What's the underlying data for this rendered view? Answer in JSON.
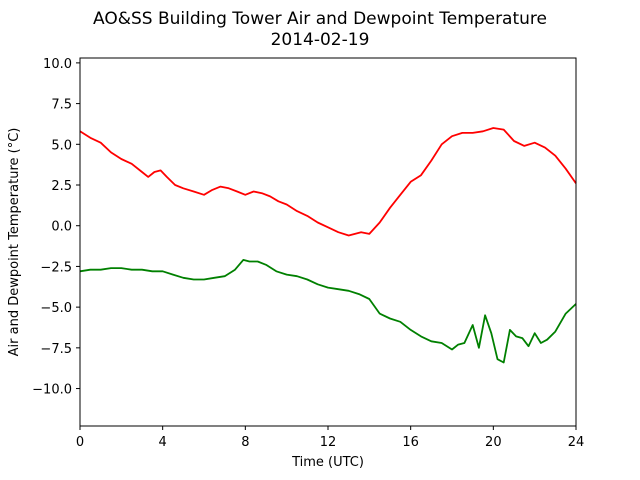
{
  "chart_data": {
    "type": "line",
    "title": "AO&SS Building Tower Air and Dewpoint Temperature",
    "subtitle": "2014-02-19",
    "xlabel": "Time (UTC)",
    "ylabel": "Air and Dewpoint Temperature (°C)",
    "xlim": [
      0,
      24
    ],
    "ylim": [
      -12.3,
      10.3
    ],
    "xticks": [
      0,
      4,
      8,
      12,
      16,
      20,
      24
    ],
    "xtick_labels": [
      "0",
      "4",
      "8",
      "12",
      "16",
      "20",
      "24"
    ],
    "yticks": [
      10.0,
      7.5,
      5.0,
      2.5,
      0.0,
      -2.5,
      -5.0,
      -7.5,
      -10.0
    ],
    "ytick_labels": [
      "10.0",
      "7.5",
      "5.0",
      "2.5",
      "0.0",
      "−2.5",
      "−5.0",
      "−7.5",
      "−10.0"
    ],
    "grid": false,
    "legend": "none",
    "series": [
      {
        "color": "#ff0000",
        "x": [
          0,
          0.5,
          1,
          1.5,
          2,
          2.5,
          3,
          3.3,
          3.6,
          3.9,
          4.2,
          4.6,
          5,
          5.5,
          6,
          6.4,
          6.8,
          7.2,
          7.6,
          8,
          8.4,
          8.8,
          9.2,
          9.6,
          10,
          10.5,
          11,
          11.5,
          12,
          12.5,
          13,
          13.3,
          13.6,
          14,
          14.5,
          15,
          15.5,
          16,
          16.5,
          17,
          17.5,
          18,
          18.5,
          19,
          19.5,
          20,
          20.5,
          21,
          21.5,
          22,
          22.5,
          23,
          23.5,
          24
        ],
        "y": [
          5.8,
          5.4,
          5.1,
          4.5,
          4.1,
          3.8,
          3.3,
          3.0,
          3.3,
          3.4,
          3.0,
          2.5,
          2.3,
          2.1,
          1.9,
          2.2,
          2.4,
          2.3,
          2.1,
          1.9,
          2.1,
          2.0,
          1.8,
          1.5,
          1.3,
          0.9,
          0.6,
          0.2,
          -0.1,
          -0.4,
          -0.6,
          -0.5,
          -0.4,
          -0.5,
          0.2,
          1.1,
          1.9,
          2.7,
          3.1,
          4.0,
          5.0,
          5.5,
          5.7,
          5.7,
          5.8,
          6.0,
          5.9,
          5.2,
          4.9,
          5.1,
          4.8,
          4.3,
          3.5,
          2.6
        ]
      },
      {
        "color": "#008000",
        "x": [
          0,
          0.5,
          1,
          1.5,
          2,
          2.5,
          3,
          3.5,
          4,
          4.5,
          5,
          5.5,
          6,
          6.5,
          7,
          7.5,
          7.9,
          8.2,
          8.6,
          9,
          9.5,
          10,
          10.5,
          11,
          11.5,
          12,
          12.5,
          13,
          13.5,
          14,
          14.5,
          15,
          15.5,
          16,
          16.5,
          17,
          17.5,
          18,
          18.3,
          18.6,
          19,
          19.3,
          19.6,
          19.9,
          20.2,
          20.5,
          20.8,
          21.1,
          21.4,
          21.7,
          22,
          22.3,
          22.6,
          23,
          23.5,
          24
        ],
        "y": [
          -2.8,
          -2.7,
          -2.7,
          -2.6,
          -2.6,
          -2.7,
          -2.7,
          -2.8,
          -2.8,
          -3.0,
          -3.2,
          -3.3,
          -3.3,
          -3.2,
          -3.1,
          -2.7,
          -2.1,
          -2.2,
          -2.2,
          -2.4,
          -2.8,
          -3.0,
          -3.1,
          -3.3,
          -3.6,
          -3.8,
          -3.9,
          -4.0,
          -4.2,
          -4.5,
          -5.4,
          -5.7,
          -5.9,
          -6.4,
          -6.8,
          -7.1,
          -7.2,
          -7.6,
          -7.3,
          -7.2,
          -6.1,
          -7.5,
          -5.5,
          -6.6,
          -8.2,
          -8.4,
          -6.4,
          -6.8,
          -6.9,
          -7.4,
          -6.6,
          -7.2,
          -7.0,
          -6.5,
          -5.4,
          -4.8
        ]
      }
    ]
  }
}
